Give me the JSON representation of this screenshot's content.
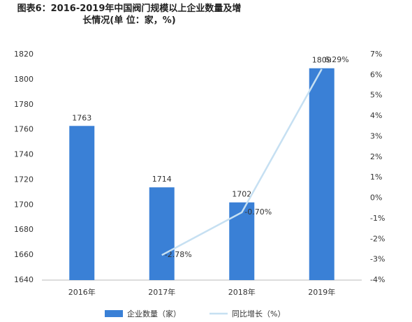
{
  "chart_data": {
    "type": "bar-line",
    "title": "图表6：2016-2019年中国阀门规模以上企业数量及增长情况(单 位：家，%)",
    "categories": [
      "2016年",
      "2017年",
      "2018年",
      "2019年"
    ],
    "series": [
      {
        "name": "企业数量（家）",
        "type": "bar",
        "color": "#3a80d6",
        "values": [
          1763,
          1714,
          1702,
          1809
        ]
      },
      {
        "name": "同比增长（%）",
        "type": "line",
        "axis": "y2",
        "color": "#c6e0f2",
        "values": [
          null,
          -2.78,
          -0.7,
          6.29
        ],
        "value_labels": [
          null,
          "-2.78%",
          "-0.70%",
          "6.29%"
        ]
      }
    ],
    "ylim": [
      1640,
      1820
    ],
    "yticks": [
      1640,
      1660,
      1680,
      1700,
      1720,
      1740,
      1760,
      1780,
      1800,
      1820
    ],
    "y2lim": [
      -4,
      7
    ],
    "y2ticks": [
      {
        "value": -4,
        "label": "-4%"
      },
      {
        "value": -3,
        "label": "-3%"
      },
      {
        "value": -2,
        "label": "-2%"
      },
      {
        "value": -1,
        "label": "-1%"
      },
      {
        "value": 0,
        "label": "0%"
      },
      {
        "value": 1,
        "label": "1%"
      },
      {
        "value": 2,
        "label": "2%"
      },
      {
        "value": 3,
        "label": "3%"
      },
      {
        "value": 4,
        "label": "4%"
      },
      {
        "value": 5,
        "label": "5%"
      },
      {
        "value": 6,
        "label": "6%"
      },
      {
        "value": 7,
        "label": "7%"
      }
    ],
    "grid": false,
    "legend": "bottom"
  }
}
